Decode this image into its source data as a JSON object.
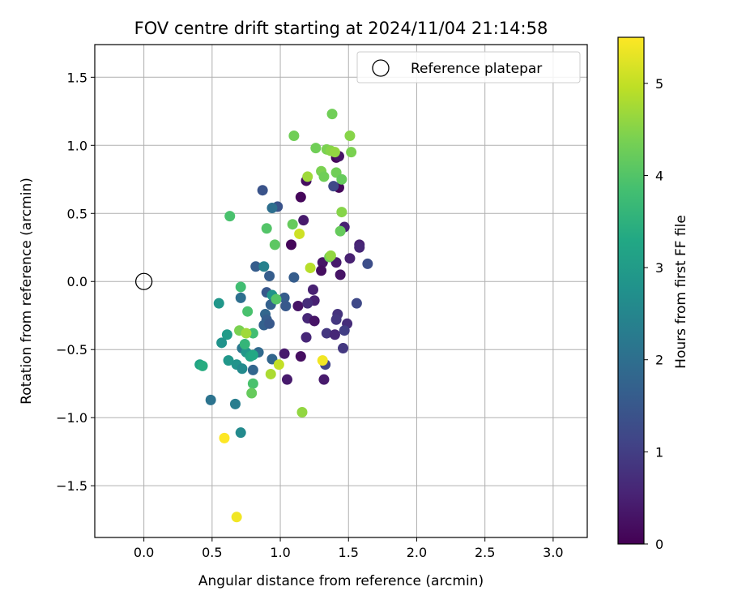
{
  "chart_data": {
    "type": "scatter",
    "title": "FOV centre drift starting at 2024/11/04 21:14:58",
    "xlabel": "Angular distance from reference (arcmin)",
    "ylabel": "Rotation from reference (arcmin)",
    "xlim": [
      -0.36,
      3.25
    ],
    "ylim": [
      -1.88,
      1.74
    ],
    "xticks": [
      0.0,
      0.5,
      1.0,
      1.5,
      2.0,
      2.5,
      3.0
    ],
    "xtick_labels": [
      "0.0",
      "0.5",
      "1.0",
      "1.5",
      "2.0",
      "2.5",
      "3.0"
    ],
    "yticks": [
      -1.5,
      -1.0,
      -0.5,
      0.0,
      0.5,
      1.0,
      1.5
    ],
    "ytick_labels": [
      "−1.5",
      "−1.0",
      "−0.5",
      "0.0",
      "0.5",
      "1.0",
      "1.5"
    ],
    "grid": true,
    "legend": {
      "placement": "top-right",
      "entries": [
        "Reference platepar"
      ]
    },
    "reference_point": {
      "x": 0.0,
      "y": 0.0,
      "marker": "open-circle"
    },
    "colorbar": {
      "label": "Hours from first FF file",
      "min": 0,
      "max": 5.5,
      "colormap": "viridis",
      "ticks": [
        0,
        1,
        2,
        3,
        4,
        5
      ],
      "tick_labels": [
        "0",
        "1",
        "2",
        "3",
        "4",
        "5"
      ]
    },
    "points": [
      {
        "x": 1.41,
        "y": 0.91,
        "c": 0.1
      },
      {
        "x": 1.43,
        "y": 0.92,
        "c": 0.3
      },
      {
        "x": 1.19,
        "y": 0.74,
        "c": 0.2
      },
      {
        "x": 1.43,
        "y": 0.69,
        "c": 0.1
      },
      {
        "x": 1.15,
        "y": 0.62,
        "c": 0.1
      },
      {
        "x": 1.17,
        "y": 0.45,
        "c": 0.4
      },
      {
        "x": 1.47,
        "y": 0.4,
        "c": 0.5
      },
      {
        "x": 1.08,
        "y": 0.27,
        "c": 0.1
      },
      {
        "x": 1.58,
        "y": 0.27,
        "c": 0.5
      },
      {
        "x": 1.58,
        "y": 0.25,
        "c": 0.6
      },
      {
        "x": 1.51,
        "y": 0.17,
        "c": 0.5
      },
      {
        "x": 1.31,
        "y": 0.14,
        "c": 0.3
      },
      {
        "x": 1.41,
        "y": 0.14,
        "c": 0.4
      },
      {
        "x": 1.3,
        "y": 0.08,
        "c": 0.2
      },
      {
        "x": 1.44,
        "y": 0.05,
        "c": 0.3
      },
      {
        "x": 1.24,
        "y": -0.06,
        "c": 0.5
      },
      {
        "x": 1.13,
        "y": -0.18,
        "c": 0.3
      },
      {
        "x": 1.25,
        "y": -0.14,
        "c": 0.5
      },
      {
        "x": 1.2,
        "y": -0.16,
        "c": 0.7
      },
      {
        "x": 1.2,
        "y": -0.27,
        "c": 0.6
      },
      {
        "x": 1.25,
        "y": -0.29,
        "c": 0.3
      },
      {
        "x": 1.42,
        "y": -0.24,
        "c": 0.8
      },
      {
        "x": 1.41,
        "y": -0.28,
        "c": 0.9
      },
      {
        "x": 1.49,
        "y": -0.31,
        "c": 0.7
      },
      {
        "x": 1.47,
        "y": -0.36,
        "c": 1.0
      },
      {
        "x": 1.34,
        "y": -0.38,
        "c": 0.9
      },
      {
        "x": 1.4,
        "y": -0.39,
        "c": 0.6
      },
      {
        "x": 1.19,
        "y": -0.41,
        "c": 0.6
      },
      {
        "x": 1.46,
        "y": -0.49,
        "c": 0.9
      },
      {
        "x": 1.15,
        "y": -0.55,
        "c": 0.2
      },
      {
        "x": 1.03,
        "y": -0.53,
        "c": 0.4
      },
      {
        "x": 1.33,
        "y": -0.61,
        "c": 1.1
      },
      {
        "x": 1.05,
        "y": -0.72,
        "c": 0.4
      },
      {
        "x": 1.32,
        "y": -0.72,
        "c": 0.4
      },
      {
        "x": 1.56,
        "y": -0.16,
        "c": 1.2
      },
      {
        "x": 1.64,
        "y": 0.13,
        "c": 1.3
      },
      {
        "x": 1.39,
        "y": 0.7,
        "c": 1.2
      },
      {
        "x": 0.87,
        "y": 0.67,
        "c": 1.4
      },
      {
        "x": 0.98,
        "y": 0.55,
        "c": 1.4
      },
      {
        "x": 0.94,
        "y": 0.54,
        "c": 2.0
      },
      {
        "x": 0.82,
        "y": 0.11,
        "c": 1.6
      },
      {
        "x": 0.88,
        "y": 0.11,
        "c": 2.4
      },
      {
        "x": 0.92,
        "y": 0.04,
        "c": 1.6
      },
      {
        "x": 1.1,
        "y": 0.03,
        "c": 1.6
      },
      {
        "x": 0.9,
        "y": -0.08,
        "c": 1.5
      },
      {
        "x": 0.94,
        "y": -0.1,
        "c": 2.8
      },
      {
        "x": 1.03,
        "y": -0.12,
        "c": 1.6
      },
      {
        "x": 0.93,
        "y": -0.17,
        "c": 1.7
      },
      {
        "x": 1.04,
        "y": -0.18,
        "c": 1.5
      },
      {
        "x": 0.89,
        "y": -0.24,
        "c": 1.8
      },
      {
        "x": 0.9,
        "y": -0.28,
        "c": 1.6
      },
      {
        "x": 0.88,
        "y": -0.32,
        "c": 1.7
      },
      {
        "x": 0.92,
        "y": -0.31,
        "c": 1.5
      },
      {
        "x": 0.84,
        "y": -0.52,
        "c": 1.9
      },
      {
        "x": 0.94,
        "y": -0.57,
        "c": 1.8
      },
      {
        "x": 0.8,
        "y": -0.65,
        "c": 1.8
      },
      {
        "x": 0.71,
        "y": -0.12,
        "c": 2.0
      },
      {
        "x": 0.72,
        "y": -0.49,
        "c": 2.2
      },
      {
        "x": 0.49,
        "y": -0.87,
        "c": 2.1
      },
      {
        "x": 0.71,
        "y": -1.11,
        "c": 2.6
      },
      {
        "x": 0.67,
        "y": -0.9,
        "c": 2.3
      },
      {
        "x": 0.57,
        "y": -0.45,
        "c": 2.8
      },
      {
        "x": 0.55,
        "y": -0.16,
        "c": 2.9
      },
      {
        "x": 0.61,
        "y": -0.39,
        "c": 3.0
      },
      {
        "x": 0.62,
        "y": -0.58,
        "c": 2.9
      },
      {
        "x": 0.68,
        "y": -0.61,
        "c": 2.8
      },
      {
        "x": 0.72,
        "y": -0.64,
        "c": 2.6
      },
      {
        "x": 0.75,
        "y": -0.52,
        "c": 2.9
      },
      {
        "x": 0.78,
        "y": -0.55,
        "c": 3.2
      },
      {
        "x": 0.8,
        "y": -0.54,
        "c": 3.3
      },
      {
        "x": 0.41,
        "y": -0.61,
        "c": 3.2
      },
      {
        "x": 0.43,
        "y": -0.62,
        "c": 3.4
      },
      {
        "x": 0.71,
        "y": -0.04,
        "c": 3.8
      },
      {
        "x": 0.76,
        "y": -0.22,
        "c": 3.9
      },
      {
        "x": 0.8,
        "y": -0.38,
        "c": 3.8
      },
      {
        "x": 0.74,
        "y": -0.46,
        "c": 3.6
      },
      {
        "x": 0.8,
        "y": -0.75,
        "c": 3.9
      },
      {
        "x": 0.79,
        "y": -0.82,
        "c": 4.2
      },
      {
        "x": 0.63,
        "y": 0.48,
        "c": 3.9
      },
      {
        "x": 0.9,
        "y": 0.39,
        "c": 4.0
      },
      {
        "x": 0.96,
        "y": 0.27,
        "c": 4.1
      },
      {
        "x": 0.97,
        "y": -0.13,
        "c": 4.0
      },
      {
        "x": 1.09,
        "y": 0.42,
        "c": 4.2
      },
      {
        "x": 1.1,
        "y": 1.07,
        "c": 4.3
      },
      {
        "x": 1.26,
        "y": 0.98,
        "c": 4.3
      },
      {
        "x": 1.34,
        "y": 0.97,
        "c": 4.4
      },
      {
        "x": 1.37,
        "y": 0.96,
        "c": 4.5
      },
      {
        "x": 1.4,
        "y": 0.95,
        "c": 4.6
      },
      {
        "x": 1.38,
        "y": 1.23,
        "c": 4.3
      },
      {
        "x": 1.51,
        "y": 1.07,
        "c": 4.5
      },
      {
        "x": 1.52,
        "y": 0.95,
        "c": 4.4
      },
      {
        "x": 1.3,
        "y": 0.81,
        "c": 4.4
      },
      {
        "x": 1.32,
        "y": 0.77,
        "c": 4.3
      },
      {
        "x": 1.41,
        "y": 0.8,
        "c": 4.3
      },
      {
        "x": 1.45,
        "y": 0.75,
        "c": 4.2
      },
      {
        "x": 1.2,
        "y": 0.77,
        "c": 4.7
      },
      {
        "x": 1.45,
        "y": 0.51,
        "c": 4.5
      },
      {
        "x": 1.44,
        "y": 0.37,
        "c": 4.2
      },
      {
        "x": 1.36,
        "y": 0.18,
        "c": 4.3
      },
      {
        "x": 1.37,
        "y": 0.19,
        "c": 4.6
      },
      {
        "x": 0.7,
        "y": -0.36,
        "c": 4.4
      },
      {
        "x": 0.75,
        "y": -0.38,
        "c": 4.7
      },
      {
        "x": 1.16,
        "y": -0.96,
        "c": 4.6
      },
      {
        "x": 0.93,
        "y": -0.68,
        "c": 4.8
      },
      {
        "x": 0.99,
        "y": -0.61,
        "c": 5.0
      },
      {
        "x": 1.14,
        "y": 0.35,
        "c": 5.1
      },
      {
        "x": 1.22,
        "y": 0.1,
        "c": 4.9
      },
      {
        "x": 1.31,
        "y": -0.58,
        "c": 5.4
      },
      {
        "x": 0.59,
        "y": -1.15,
        "c": 5.5
      },
      {
        "x": 0.68,
        "y": -1.73,
        "c": 5.4
      }
    ]
  }
}
